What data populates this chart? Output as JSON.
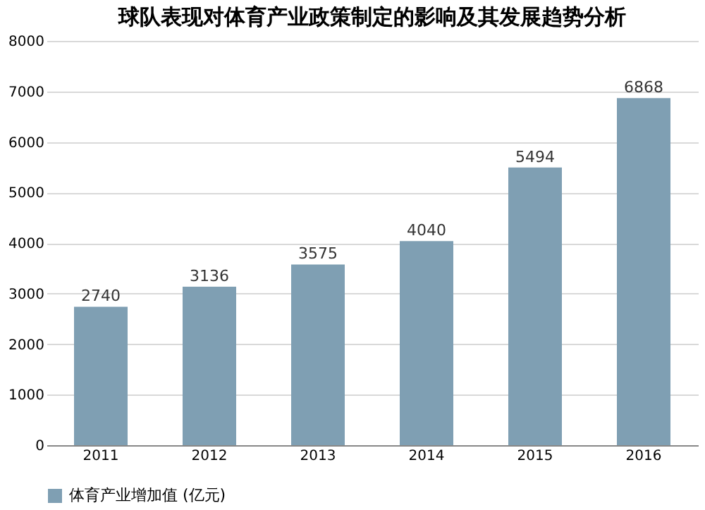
{
  "chart_data": {
    "type": "bar",
    "title": "球队表现对体育产业政策制定的影响及其发展趋势分析",
    "categories": [
      "2011",
      "2012",
      "2013",
      "2014",
      "2015",
      "2016"
    ],
    "series": [
      {
        "name": "体育产业增加值 (亿元)",
        "color": "#7f9fb3",
        "values": [
          2740,
          3136,
          3575,
          4040,
          5494,
          6868
        ]
      }
    ],
    "ylim": [
      0,
      8000
    ],
    "yticks": [
      0,
      1000,
      2000,
      3000,
      4000,
      5000,
      6000,
      7000,
      8000
    ],
    "grid": "y",
    "legend": "bottom",
    "data_labels": true
  }
}
